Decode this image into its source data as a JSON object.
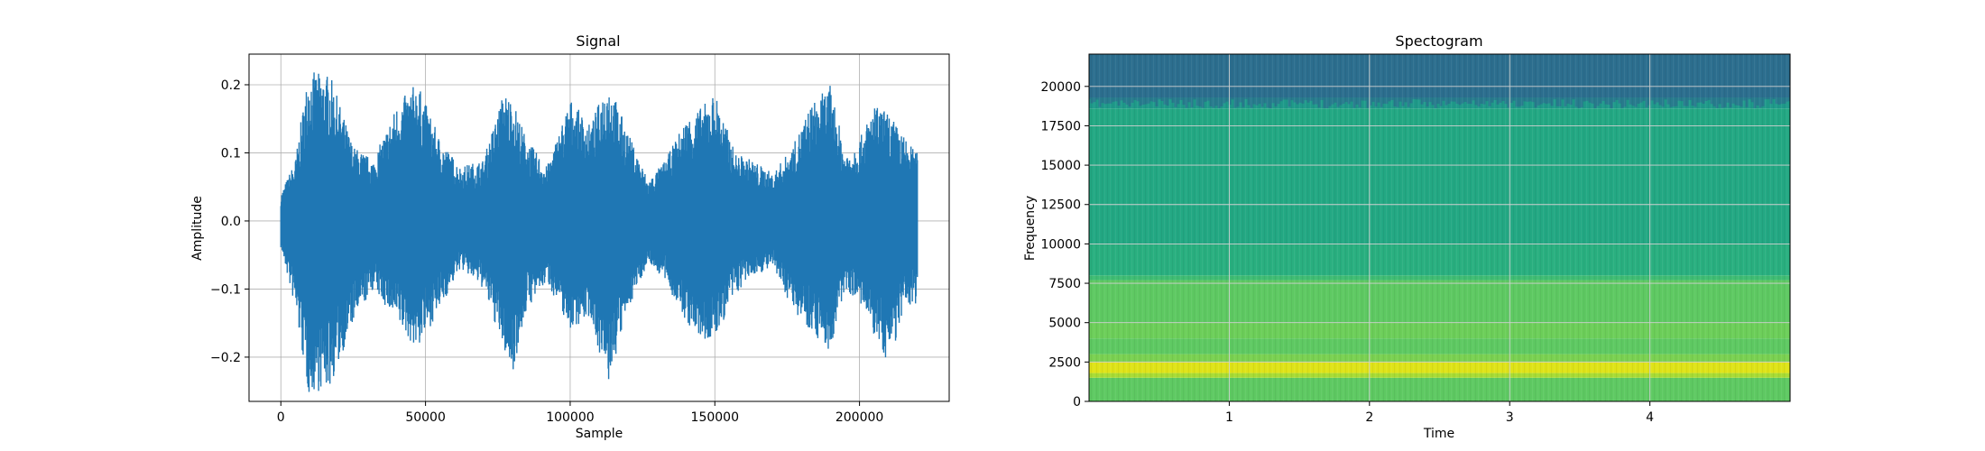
{
  "chart_data": [
    {
      "type": "line",
      "title": "Signal",
      "xlabel": "Sample",
      "ylabel": "Amplitude",
      "xlim": [
        -11000,
        231000
      ],
      "ylim": [
        -0.265,
        0.245
      ],
      "xticks": [
        0,
        50000,
        100000,
        150000,
        200000
      ],
      "xtick_labels": [
        "0",
        "50000",
        "100000",
        "150000",
        "200000"
      ],
      "yticks": [
        -0.2,
        -0.1,
        0.0,
        0.1,
        0.2
      ],
      "ytick_labels": [
        "−0.2",
        "−0.1",
        "0.0",
        "0.1",
        "0.2"
      ],
      "grid": true,
      "color": "#1f77b4",
      "series": [
        {
          "x": [
            0,
            5000,
            9500,
            17000,
            25000,
            32000,
            40000,
            47000,
            55000,
            62000,
            70000,
            77000,
            80000,
            85000,
            92000,
            100000,
            107000,
            113000,
            120000,
            127000,
            133000,
            140000,
            146000,
            150000,
            157000,
            163000,
            170000,
            177000,
            183000,
            190000,
            195000,
            200000,
            205000,
            210000,
            216000,
            220000
          ],
          "y_max": [
            0.04,
            0.09,
            0.22,
            0.215,
            0.11,
            0.09,
            0.17,
            0.205,
            0.12,
            0.08,
            0.09,
            0.19,
            0.18,
            0.12,
            0.08,
            0.18,
            0.14,
            0.21,
            0.13,
            0.06,
            0.09,
            0.15,
            0.17,
            0.19,
            0.1,
            0.09,
            0.07,
            0.11,
            0.17,
            0.2,
            0.1,
            0.12,
            0.17,
            0.16,
            0.12,
            0.1
          ],
          "y_min": [
            -0.04,
            -0.13,
            -0.255,
            -0.245,
            -0.15,
            -0.1,
            -0.15,
            -0.19,
            -0.13,
            -0.07,
            -0.1,
            -0.19,
            -0.225,
            -0.13,
            -0.09,
            -0.16,
            -0.14,
            -0.245,
            -0.13,
            -0.06,
            -0.09,
            -0.15,
            -0.18,
            -0.175,
            -0.11,
            -0.08,
            -0.07,
            -0.13,
            -0.16,
            -0.195,
            -0.1,
            -0.12,
            -0.17,
            -0.21,
            -0.13,
            -0.12
          ]
        }
      ]
    },
    {
      "type": "heatmap",
      "title": "Spectogram",
      "xlabel": "Time",
      "ylabel": "Frequency",
      "xlim": [
        0,
        5
      ],
      "ylim": [
        0,
        22050
      ],
      "xticks": [
        1,
        2,
        3,
        4
      ],
      "xtick_labels": [
        "1",
        "2",
        "3",
        "4"
      ],
      "yticks": [
        0,
        2500,
        5000,
        7500,
        10000,
        12500,
        15000,
        17500,
        20000
      ],
      "ytick_labels": [
        "0",
        "2500",
        "5000",
        "7500",
        "10000",
        "12500",
        "15000",
        "17500",
        "20000"
      ],
      "grid": true,
      "colormap": "viridis",
      "bands": [
        {
          "from": 0,
          "to": 1500,
          "color": "#5ec962"
        },
        {
          "from": 1500,
          "to": 1800,
          "color": "#a8db34"
        },
        {
          "from": 1800,
          "to": 2500,
          "color": "#dfe318"
        },
        {
          "from": 2500,
          "to": 3000,
          "color": "#7ad151"
        },
        {
          "from": 3000,
          "to": 4000,
          "color": "#5ec962"
        },
        {
          "from": 4000,
          "to": 5000,
          "color": "#6cce59"
        },
        {
          "from": 5000,
          "to": 7700,
          "color": "#5ec962"
        },
        {
          "from": 7700,
          "to": 8000,
          "color": "#3fbc73"
        },
        {
          "from": 8000,
          "to": 10000,
          "color": "#29af7f"
        },
        {
          "from": 10000,
          "to": 18600,
          "color": "#23a883"
        },
        {
          "from": 18600,
          "to": 19300,
          "color": "#1f9a8a"
        },
        {
          "from": 19300,
          "to": 22050,
          "color": "#2c6e8e"
        }
      ]
    }
  ]
}
